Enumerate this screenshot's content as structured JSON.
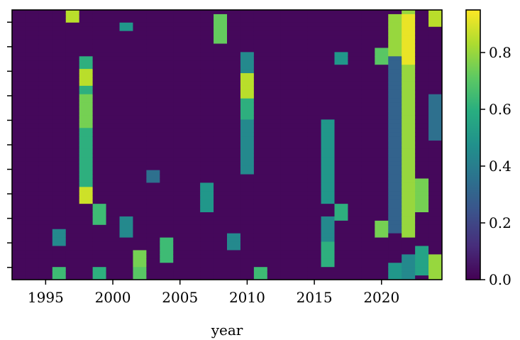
{
  "chart_data": {
    "type": "heatmap",
    "title": "",
    "xlabel": "year",
    "ylabel": "",
    "colormap": "viridis",
    "x_range": [
      1993,
      2024
    ],
    "xticks": [
      1995,
      2000,
      2005,
      2010,
      2015,
      2020
    ],
    "xtick_labels": [
      "1995",
      "2000",
      "2005",
      "2010",
      "2015",
      "2020"
    ],
    "n_rows": 64,
    "ytick_labels": [],
    "color_range": [
      0,
      0.95
    ],
    "colorbar_ticks": [
      0.0,
      0.2,
      0.4,
      0.6,
      0.8
    ],
    "colorbar_tick_labels": [
      "0.0",
      "0.2",
      "0.4",
      "0.6",
      "0.8"
    ],
    "background_value": 0.02,
    "features": [
      {
        "year": 1998,
        "row_start": 11,
        "row_end": 44,
        "value": 0.6
      },
      {
        "year": 1998,
        "row_start": 14,
        "row_end": 17,
        "value": 0.85
      },
      {
        "year": 1998,
        "row_start": 20,
        "row_end": 27,
        "value": 0.75
      },
      {
        "year": 1998,
        "row_start": 42,
        "row_end": 45,
        "value": 0.88
      },
      {
        "year": 1997,
        "row_start": 0,
        "row_end": 2,
        "value": 0.85
      },
      {
        "year": 1996,
        "row_start": 52,
        "row_end": 55,
        "value": 0.45
      },
      {
        "year": 1996,
        "row_start": 61,
        "row_end": 63,
        "value": 0.65
      },
      {
        "year": 1999,
        "row_start": 46,
        "row_end": 50,
        "value": 0.65
      },
      {
        "year": 1999,
        "row_start": 61,
        "row_end": 63,
        "value": 0.6
      },
      {
        "year": 2001,
        "row_start": 49,
        "row_end": 53,
        "value": 0.45
      },
      {
        "year": 2001,
        "row_start": 3,
        "row_end": 4,
        "value": 0.5
      },
      {
        "year": 2002,
        "row_start": 57,
        "row_end": 60,
        "value": 0.75
      },
      {
        "year": 2002,
        "row_start": 61,
        "row_end": 63,
        "value": 0.7
      },
      {
        "year": 2003,
        "row_start": 38,
        "row_end": 40,
        "value": 0.35
      },
      {
        "year": 2004,
        "row_start": 54,
        "row_end": 59,
        "value": 0.65
      },
      {
        "year": 2007,
        "row_start": 41,
        "row_end": 47,
        "value": 0.5
      },
      {
        "year": 2008,
        "row_start": 1,
        "row_end": 7,
        "value": 0.72
      },
      {
        "year": 2009,
        "row_start": 53,
        "row_end": 56,
        "value": 0.45
      },
      {
        "year": 2010,
        "row_start": 10,
        "row_end": 38,
        "value": 0.45
      },
      {
        "year": 2010,
        "row_start": 15,
        "row_end": 20,
        "value": 0.85
      },
      {
        "year": 2010,
        "row_start": 20,
        "row_end": 25,
        "value": 0.6
      },
      {
        "year": 2011,
        "row_start": 61,
        "row_end": 63,
        "value": 0.65
      },
      {
        "year": 2016,
        "row_start": 26,
        "row_end": 45,
        "value": 0.5
      },
      {
        "year": 2016,
        "row_start": 49,
        "row_end": 55,
        "value": 0.45
      },
      {
        "year": 2016,
        "row_start": 55,
        "row_end": 60,
        "value": 0.6
      },
      {
        "year": 2017,
        "row_start": 10,
        "row_end": 12,
        "value": 0.5
      },
      {
        "year": 2017,
        "row_start": 46,
        "row_end": 49,
        "value": 0.6
      },
      {
        "year": 2020,
        "row_start": 9,
        "row_end": 12,
        "value": 0.7
      },
      {
        "year": 2020,
        "row_start": 50,
        "row_end": 53,
        "value": 0.75
      },
      {
        "year": 2021,
        "row_start": 1,
        "row_end": 52,
        "value": 0.3
      },
      {
        "year": 2021,
        "row_start": 1,
        "row_end": 10,
        "value": 0.8
      },
      {
        "year": 2021,
        "row_start": 60,
        "row_end": 63,
        "value": 0.5
      },
      {
        "year": 2022,
        "row_start": 0,
        "row_end": 53,
        "value": 0.8
      },
      {
        "year": 2022,
        "row_start": 1,
        "row_end": 12,
        "value": 0.92
      },
      {
        "year": 2022,
        "row_start": 58,
        "row_end": 63,
        "value": 0.45
      },
      {
        "year": 2023,
        "row_start": 40,
        "row_end": 47,
        "value": 0.75
      },
      {
        "year": 2023,
        "row_start": 56,
        "row_end": 62,
        "value": 0.55
      },
      {
        "year": 2024,
        "row_start": 0,
        "row_end": 3,
        "value": 0.85
      },
      {
        "year": 2024,
        "row_start": 20,
        "row_end": 30,
        "value": 0.35
      },
      {
        "year": 2024,
        "row_start": 58,
        "row_end": 63,
        "value": 0.8
      }
    ]
  }
}
